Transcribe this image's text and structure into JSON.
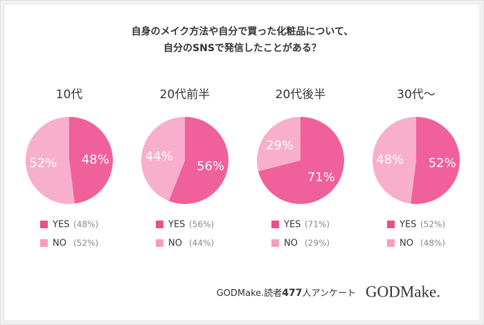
{
  "header": {
    "title": [
      "自身のメイク方法や自分で買った化粧品について、",
      "自分のSNSで発信したことがある？"
    ]
  },
  "chart_data": [
    {
      "type": "pie",
      "title": "10代",
      "categories": [
        "YES",
        "NO"
      ],
      "values": [
        48,
        52
      ],
      "value_labels": [
        "48%",
        "52%"
      ],
      "legend_value_labels": [
        "(48%)",
        "(52%)"
      ],
      "colors": [
        "#f0609a",
        "#f7afcb"
      ],
      "legend_colors": [
        "#ea4f8b",
        "#f79cc0"
      ]
    },
    {
      "type": "pie",
      "title": "20代前半",
      "categories": [
        "YES",
        "NO"
      ],
      "values": [
        56,
        44
      ],
      "value_labels": [
        "56%",
        "44%"
      ],
      "legend_value_labels": [
        "(56%)",
        "(44%)"
      ],
      "colors": [
        "#f0609a",
        "#f7afcb"
      ],
      "legend_colors": [
        "#ea4f8b",
        "#f79cc0"
      ]
    },
    {
      "type": "pie",
      "title": "20代後半",
      "categories": [
        "YES",
        "NO"
      ],
      "values": [
        71,
        29
      ],
      "value_labels": [
        "71%",
        "29%"
      ],
      "legend_value_labels": [
        "(71%)",
        "(29%)"
      ],
      "colors": [
        "#f0609a",
        "#f7afcb"
      ],
      "legend_colors": [
        "#ea4f8b",
        "#f79cc0"
      ]
    },
    {
      "type": "pie",
      "title": "30代～",
      "categories": [
        "YES",
        "NO"
      ],
      "values": [
        52,
        48
      ],
      "value_labels": [
        "52%",
        "48%"
      ],
      "legend_value_labels": [
        "(52%)",
        "(48%)"
      ],
      "colors": [
        "#f0609a",
        "#f7afcb"
      ],
      "legend_colors": [
        "#ea4f8b",
        "#f79cc0"
      ]
    }
  ],
  "footer": {
    "source": [
      "GODMake.読者",
      "477",
      "人アンケート"
    ],
    "logo": "GODMake."
  }
}
